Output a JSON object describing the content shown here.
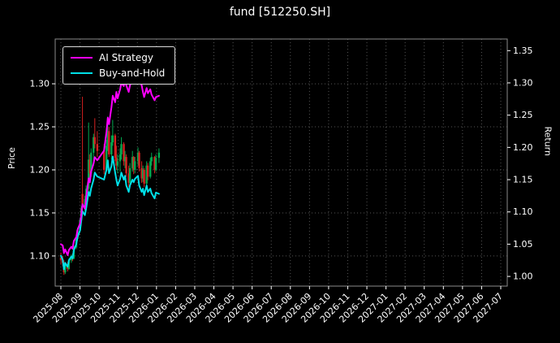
{
  "title": "fund [512250.SH]",
  "colors": {
    "background": "#000000",
    "text": "#ffffff",
    "grid": "#555555",
    "frame": "#8a8a8a",
    "ai_strategy": "#ff00ff",
    "buy_and_hold": "#00e0e8",
    "candle_up": "#00a84f",
    "candle_down": "#d62020"
  },
  "legend": {
    "position": "upper-left",
    "entries": [
      {
        "label": "AI Strategy",
        "color_key": "ai_strategy"
      },
      {
        "label": "Buy-and-Hold",
        "color_key": "buy_and_hold"
      }
    ]
  },
  "chart_data": {
    "type": "line",
    "title": "fund [512250.SH]",
    "xlabel": "",
    "grid": true,
    "grid_style": "dotted",
    "x_tick_labels": [
      "2025-08",
      "2025-09",
      "2025-10",
      "2025-11",
      "2025-12",
      "2026-01",
      "2026-02",
      "2026-03",
      "2026-04",
      "2026-05",
      "2026-06",
      "2026-07",
      "2026-08",
      "2026-09",
      "2026-10",
      "2026-11",
      "2026-12",
      "2027-01",
      "2027-02",
      "2027-03",
      "2027-04",
      "2027-05",
      "2027-06",
      "2027-07"
    ],
    "left_axis": {
      "label": "Price",
      "ticks": [
        1.1,
        1.15,
        1.2,
        1.25,
        1.3
      ],
      "ylim": [
        1.065,
        1.352
      ]
    },
    "right_axis": {
      "label": "Return",
      "ticks": [
        1.0,
        1.05,
        1.1,
        1.15,
        1.2,
        1.25,
        1.3,
        1.35
      ],
      "ylim": [
        0.985,
        1.368
      ]
    },
    "series": [
      {
        "name": "AI Strategy",
        "axis": "right",
        "color_key": "ai_strategy",
        "points": [
          [
            "2025-08-01",
            1.05
          ],
          [
            "2025-08-04",
            1.048
          ],
          [
            "2025-08-06",
            1.036
          ],
          [
            "2025-08-08",
            1.042
          ],
          [
            "2025-08-12",
            1.033
          ],
          [
            "2025-08-14",
            1.041
          ],
          [
            "2025-08-18",
            1.046
          ],
          [
            "2025-08-20",
            1.043
          ],
          [
            "2025-08-22",
            1.055
          ],
          [
            "2025-08-26",
            1.061
          ],
          [
            "2025-08-28",
            1.072
          ],
          [
            "2025-09-01",
            1.082
          ],
          [
            "2025-09-03",
            1.095
          ],
          [
            "2025-09-05",
            1.112
          ],
          [
            "2025-09-09",
            1.105
          ],
          [
            "2025-09-11",
            1.122
          ],
          [
            "2025-09-15",
            1.152
          ],
          [
            "2025-09-17",
            1.146
          ],
          [
            "2025-09-19",
            1.162
          ],
          [
            "2025-09-23",
            1.175
          ],
          [
            "2025-09-25",
            1.185
          ],
          [
            "2025-09-29",
            1.18
          ],
          [
            "2025-10-09",
            1.195
          ],
          [
            "2025-10-13",
            1.225
          ],
          [
            "2025-10-15",
            1.246
          ],
          [
            "2025-10-17",
            1.236
          ],
          [
            "2025-10-21",
            1.262
          ],
          [
            "2025-10-23",
            1.28
          ],
          [
            "2025-10-27",
            1.27
          ],
          [
            "2025-10-29",
            1.286
          ],
          [
            "2025-10-31",
            1.276
          ],
          [
            "2025-11-04",
            1.29
          ],
          [
            "2025-11-06",
            1.3
          ],
          [
            "2025-11-10",
            1.295
          ],
          [
            "2025-11-12",
            1.306
          ],
          [
            "2025-11-14",
            1.296
          ],
          [
            "2025-11-18",
            1.286
          ],
          [
            "2025-11-20",
            1.296
          ],
          [
            "2025-11-24",
            1.306
          ],
          [
            "2025-11-26",
            1.3
          ],
          [
            "2025-11-28",
            1.31
          ],
          [
            "2025-12-02",
            1.316
          ],
          [
            "2025-12-04",
            1.306
          ],
          [
            "2025-12-08",
            1.296
          ],
          [
            "2025-12-10",
            1.286
          ],
          [
            "2025-12-12",
            1.278
          ],
          [
            "2025-12-16",
            1.292
          ],
          [
            "2025-12-18",
            1.284
          ],
          [
            "2025-12-22",
            1.29
          ],
          [
            "2025-12-24",
            1.282
          ],
          [
            "2025-12-29",
            1.273
          ],
          [
            "2025-12-31",
            1.278
          ],
          [
            "2026-01-05",
            1.28
          ]
        ]
      },
      {
        "name": "Buy-and-Hold",
        "axis": "right",
        "color_key": "buy_and_hold",
        "points": [
          [
            "2025-08-01",
            1.032
          ],
          [
            "2025-08-04",
            1.026
          ],
          [
            "2025-08-06",
            1.011
          ],
          [
            "2025-08-08",
            1.021
          ],
          [
            "2025-08-12",
            1.015
          ],
          [
            "2025-08-14",
            1.025
          ],
          [
            "2025-08-18",
            1.031
          ],
          [
            "2025-08-20",
            1.028
          ],
          [
            "2025-08-22",
            1.041
          ],
          [
            "2025-08-26",
            1.05
          ],
          [
            "2025-08-28",
            1.061
          ],
          [
            "2025-09-01",
            1.071
          ],
          [
            "2025-09-03",
            1.086
          ],
          [
            "2025-09-05",
            1.101
          ],
          [
            "2025-09-09",
            1.095
          ],
          [
            "2025-09-11",
            1.106
          ],
          [
            "2025-09-15",
            1.131
          ],
          [
            "2025-09-17",
            1.125
          ],
          [
            "2025-09-19",
            1.136
          ],
          [
            "2025-09-23",
            1.15
          ],
          [
            "2025-09-25",
            1.161
          ],
          [
            "2025-09-29",
            1.155
          ],
          [
            "2025-10-09",
            1.15
          ],
          [
            "2025-10-13",
            1.166
          ],
          [
            "2025-10-15",
            1.18
          ],
          [
            "2025-10-17",
            1.16
          ],
          [
            "2025-10-21",
            1.171
          ],
          [
            "2025-10-23",
            1.186
          ],
          [
            "2025-10-27",
            1.161
          ],
          [
            "2025-10-29",
            1.15
          ],
          [
            "2025-10-31",
            1.141
          ],
          [
            "2025-11-04",
            1.151
          ],
          [
            "2025-11-06",
            1.161
          ],
          [
            "2025-11-10",
            1.15
          ],
          [
            "2025-11-12",
            1.156
          ],
          [
            "2025-11-14",
            1.141
          ],
          [
            "2025-11-18",
            1.131
          ],
          [
            "2025-11-20",
            1.141
          ],
          [
            "2025-11-24",
            1.15
          ],
          [
            "2025-11-26",
            1.146
          ],
          [
            "2025-11-28",
            1.151
          ],
          [
            "2025-12-02",
            1.156
          ],
          [
            "2025-12-04",
            1.141
          ],
          [
            "2025-12-08",
            1.131
          ],
          [
            "2025-12-10",
            1.136
          ],
          [
            "2025-12-12",
            1.126
          ],
          [
            "2025-12-16",
            1.141
          ],
          [
            "2025-12-18",
            1.131
          ],
          [
            "2025-12-22",
            1.136
          ],
          [
            "2025-12-24",
            1.129
          ],
          [
            "2025-12-29",
            1.121
          ],
          [
            "2025-12-31",
            1.13
          ],
          [
            "2026-01-05",
            1.128
          ]
        ]
      }
    ],
    "candles": {
      "axis": "left",
      "columns": [
        "date",
        "open",
        "high",
        "low",
        "close"
      ],
      "points": [
        [
          "2025-08-01",
          1.098,
          1.104,
          1.09,
          1.095
        ],
        [
          "2025-08-04",
          1.095,
          1.1,
          1.088,
          1.092
        ],
        [
          "2025-08-06",
          1.092,
          1.095,
          1.078,
          1.081
        ],
        [
          "2025-08-08",
          1.081,
          1.092,
          1.079,
          1.09
        ],
        [
          "2025-08-12",
          1.09,
          1.093,
          1.082,
          1.085
        ],
        [
          "2025-08-14",
          1.085,
          1.097,
          1.084,
          1.095
        ],
        [
          "2025-08-18",
          1.095,
          1.102,
          1.092,
          1.1
        ],
        [
          "2025-08-20",
          1.1,
          1.103,
          1.094,
          1.097
        ],
        [
          "2025-08-22",
          1.097,
          1.112,
          1.096,
          1.11
        ],
        [
          "2025-08-26",
          1.11,
          1.122,
          1.108,
          1.12
        ],
        [
          "2025-08-28",
          1.12,
          1.133,
          1.118,
          1.13
        ],
        [
          "2025-09-01",
          1.13,
          1.144,
          1.128,
          1.142
        ],
        [
          "2025-09-03",
          1.142,
          1.158,
          1.14,
          1.155
        ],
        [
          "2025-09-05",
          1.172,
          1.285,
          1.15,
          1.158
        ],
        [
          "2025-09-09",
          1.158,
          1.17,
          1.152,
          1.166
        ],
        [
          "2025-09-11",
          1.166,
          1.182,
          1.16,
          1.178
        ],
        [
          "2025-09-15",
          1.178,
          1.255,
          1.175,
          1.212
        ],
        [
          "2025-09-17",
          1.212,
          1.218,
          1.19,
          1.196
        ],
        [
          "2025-09-19",
          1.196,
          1.225,
          1.192,
          1.22
        ],
        [
          "2025-09-23",
          1.22,
          1.242,
          1.205,
          1.238
        ],
        [
          "2025-09-25",
          1.238,
          1.26,
          1.225,
          1.23
        ],
        [
          "2025-09-29",
          1.23,
          1.245,
          1.215,
          1.222
        ],
        [
          "2025-10-09",
          1.222,
          1.23,
          1.195,
          1.2
        ],
        [
          "2025-10-13",
          1.2,
          1.235,
          1.198,
          1.228
        ],
        [
          "2025-10-15",
          1.228,
          1.262,
          1.222,
          1.245
        ],
        [
          "2025-10-17",
          1.245,
          1.25,
          1.215,
          1.218
        ],
        [
          "2025-10-21",
          1.218,
          1.24,
          1.212,
          1.232
        ],
        [
          "2025-10-23",
          1.232,
          1.258,
          1.228,
          1.24
        ],
        [
          "2025-10-27",
          1.24,
          1.242,
          1.21,
          1.214
        ],
        [
          "2025-10-29",
          1.214,
          1.228,
          1.2,
          1.205
        ],
        [
          "2025-10-31",
          1.205,
          1.218,
          1.196,
          1.21
        ],
        [
          "2025-11-04",
          1.21,
          1.225,
          1.198,
          1.218
        ],
        [
          "2025-11-06",
          1.218,
          1.238,
          1.212,
          1.23
        ],
        [
          "2025-11-10",
          1.23,
          1.232,
          1.205,
          1.21
        ],
        [
          "2025-11-12",
          1.21,
          1.222,
          1.202,
          1.215
        ],
        [
          "2025-11-14",
          1.215,
          1.218,
          1.192,
          1.196
        ],
        [
          "2025-11-18",
          1.196,
          1.205,
          1.18,
          1.185
        ],
        [
          "2025-11-20",
          1.185,
          1.208,
          1.182,
          1.202
        ],
        [
          "2025-11-24",
          1.202,
          1.222,
          1.198,
          1.215
        ],
        [
          "2025-11-26",
          1.215,
          1.216,
          1.195,
          1.2
        ],
        [
          "2025-11-28",
          1.2,
          1.215,
          1.196,
          1.21
        ],
        [
          "2025-12-02",
          1.21,
          1.226,
          1.205,
          1.22
        ],
        [
          "2025-12-04",
          1.22,
          1.222,
          1.198,
          1.202
        ],
        [
          "2025-12-08",
          1.202,
          1.21,
          1.185,
          1.19
        ],
        [
          "2025-12-10",
          1.19,
          1.205,
          1.186,
          1.2
        ],
        [
          "2025-12-12",
          1.2,
          1.202,
          1.18,
          1.184
        ],
        [
          "2025-12-16",
          1.184,
          1.21,
          1.182,
          1.205
        ],
        [
          "2025-12-18",
          1.205,
          1.208,
          1.188,
          1.192
        ],
        [
          "2025-12-22",
          1.192,
          1.214,
          1.19,
          1.21
        ],
        [
          "2025-12-24",
          1.21,
          1.22,
          1.205,
          1.215
        ],
        [
          "2025-12-29",
          1.215,
          1.216,
          1.196,
          1.2
        ],
        [
          "2025-12-31",
          1.2,
          1.218,
          1.198,
          1.214
        ],
        [
          "2026-01-05",
          1.214,
          1.225,
          1.208,
          1.22
        ]
      ]
    }
  }
}
